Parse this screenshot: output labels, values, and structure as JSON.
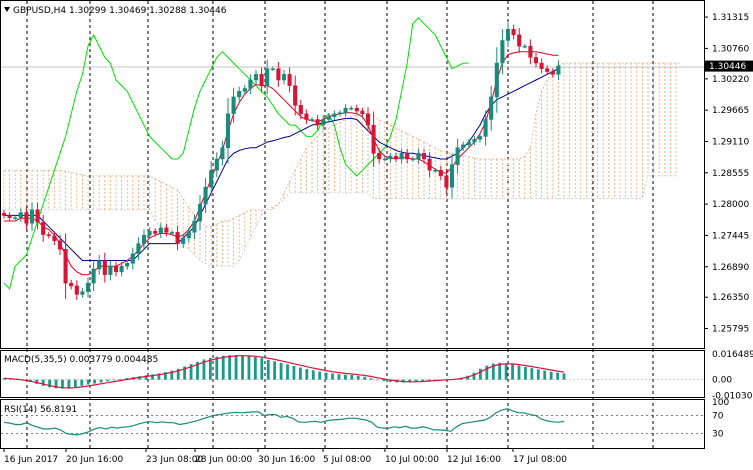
{
  "chart_data": {
    "type": "candlestick",
    "main": {
      "header": "GBPUSD,H4  1.30299 1.30469 1.30288 1.30446",
      "current_price": "1.30446",
      "ylim": [
        1.2545,
        1.316
      ],
      "y_ticks": [
        "1.31315",
        "1.30760",
        "1.30220",
        "1.29665",
        "1.29110",
        "1.28555",
        "1.28000",
        "1.27445",
        "1.26890",
        "1.26350",
        "1.25795"
      ],
      "close": [
        1.278,
        1.2776,
        1.2776,
        1.2785,
        1.2766,
        1.279,
        1.2768,
        1.2746,
        1.2744,
        1.2735,
        1.272,
        1.266,
        1.2655,
        1.264,
        1.2645,
        1.266,
        1.2685,
        1.27,
        1.2675,
        1.269,
        1.268,
        1.269,
        1.2695,
        1.2712,
        1.273,
        1.2745,
        1.2752,
        1.2748,
        1.2758,
        1.275,
        1.275,
        1.273,
        1.274,
        1.275,
        1.277,
        1.28,
        1.283,
        1.286,
        1.288,
        1.29,
        1.296,
        1.299,
        1.3,
        1.3005,
        1.302,
        1.303,
        1.301,
        1.304,
        1.304,
        1.302,
        1.303,
        1.301,
        1.2975,
        1.296,
        1.295,
        1.295,
        1.294,
        1.295,
        1.2955,
        1.296,
        1.2962,
        1.297,
        1.297,
        1.2965,
        1.296,
        1.294,
        1.289,
        1.288,
        1.288,
        1.2885,
        1.288,
        1.289,
        1.288,
        1.288,
        1.289,
        1.288,
        1.286,
        1.286,
        1.285,
        1.283,
        1.287,
        1.29,
        1.2905,
        1.291,
        1.2915,
        1.292,
        1.295,
        1.299,
        1.305,
        1.309,
        1.311,
        1.31,
        1.308,
        1.308,
        1.306,
        1.305,
        1.304,
        1.3035,
        1.303,
        1.3045
      ],
      "series": [
        {
          "name": "tenkan",
          "values": [
            1.277,
            1.277,
            1.277,
            1.2775,
            1.2775,
            1.2775,
            1.277,
            1.276,
            1.2755,
            1.2745,
            1.273,
            1.271,
            1.269,
            1.268,
            1.2675,
            1.2675,
            1.268,
            1.269,
            1.269,
            1.269,
            1.269,
            1.2695,
            1.27,
            1.2708,
            1.2718,
            1.273,
            1.274,
            1.2745,
            1.2748,
            1.2748,
            1.2746,
            1.2742,
            1.2745,
            1.2755,
            1.277,
            1.2795,
            1.282,
            1.2845,
            1.287,
            1.2895,
            1.293,
            1.296,
            1.298,
            1.2995,
            1.3005,
            1.3012,
            1.301,
            1.301,
            1.3005,
            1.2995,
            1.2985,
            1.2975,
            1.2965,
            1.2955,
            1.295,
            1.2948,
            1.2946,
            1.295,
            1.2955,
            1.2958,
            1.296,
            1.2962,
            1.2962,
            1.296,
            1.2955,
            1.294,
            1.2915,
            1.2895,
            1.2885,
            1.2882,
            1.288,
            1.2883,
            1.2882,
            1.288,
            1.288,
            1.2875,
            1.2868,
            1.2862,
            1.2856,
            1.2855,
            1.2865,
            1.288,
            1.289,
            1.29,
            1.291,
            1.2925,
            1.2945,
            1.298,
            1.302,
            1.305,
            1.3065,
            1.3068,
            1.307,
            1.307,
            1.307,
            1.307,
            1.3068,
            1.3066,
            1.3064,
            1.3064
          ]
        },
        {
          "name": "kijun",
          "values": [
            1.278,
            1.278,
            1.278,
            1.278,
            1.278,
            1.278,
            1.278,
            1.277,
            1.276,
            1.275,
            1.274,
            1.273,
            1.272,
            1.271,
            1.27,
            1.27,
            1.27,
            1.27,
            1.27,
            1.27,
            1.27,
            1.27,
            1.27,
            1.27,
            1.271,
            1.272,
            1.273,
            1.273,
            1.273,
            1.273,
            1.273,
            1.273,
            1.274,
            1.275,
            1.276,
            1.278,
            1.28,
            1.282,
            1.284,
            1.286,
            1.288,
            1.289,
            1.2895,
            1.2898,
            1.29,
            1.29,
            1.2905,
            1.291,
            1.2912,
            1.2915,
            1.2918,
            1.292,
            1.2925,
            1.293,
            1.2935,
            1.294,
            1.2942,
            1.2944,
            1.2946,
            1.2948,
            1.295,
            1.2952,
            1.2952,
            1.295,
            1.294,
            1.293,
            1.292,
            1.291,
            1.2905,
            1.29,
            1.2895,
            1.2892,
            1.289,
            1.289,
            1.2888,
            1.2886,
            1.2884,
            1.2882,
            1.288,
            1.288,
            1.2885,
            1.289,
            1.29,
            1.291,
            1.2925,
            1.294,
            1.296,
            1.2975,
            1.2985,
            1.299,
            1.2995,
            1.3,
            1.3005,
            1.301,
            1.3015,
            1.302,
            1.3025,
            1.303,
            1.3035,
            1.304
          ]
        },
        {
          "name": "chikou",
          "values": [
            1.266,
            1.265,
            1.269,
            1.27,
            1.271,
            1.274,
            1.277,
            1.28,
            1.283,
            1.286,
            1.289,
            1.292,
            1.296,
            1.3,
            1.303,
            1.308,
            1.31,
            1.308,
            1.306,
            1.305,
            1.302,
            1.301,
            1.3,
            1.298,
            1.296,
            1.294,
            1.292,
            1.291,
            1.29,
            1.289,
            1.288,
            1.288,
            1.289,
            1.293,
            1.297,
            1.3,
            1.302,
            1.304,
            1.306,
            1.307,
            1.306,
            1.305,
            1.304,
            1.303,
            1.302,
            1.301,
            1.3,
            1.299,
            1.2975,
            1.296,
            1.295,
            1.294,
            1.294,
            1.293,
            1.292,
            1.292,
            1.293,
            1.295,
            1.296,
            1.294,
            1.29,
            1.287,
            1.286,
            1.285,
            1.286,
            1.287,
            1.288,
            1.289,
            1.29,
            1.292,
            1.295,
            1.3,
            1.305,
            1.312,
            1.313,
            1.312,
            1.311,
            1.31,
            1.308,
            1.306,
            1.304,
            1.3045,
            1.305,
            1.305
          ]
        },
        {
          "name": "span_a",
          "values": [
            1.286,
            1.286,
            1.286,
            1.286,
            1.286,
            1.286,
            1.286,
            1.286,
            1.286,
            1.286,
            1.286,
            1.2858,
            1.2856,
            1.2854,
            1.2852,
            1.285,
            1.285,
            1.285,
            1.285,
            1.285,
            1.285,
            1.285,
            1.285,
            1.285,
            1.285,
            1.285,
            1.285,
            1.2845,
            1.284,
            1.2835,
            1.283,
            1.2825,
            1.281,
            1.2795,
            1.278,
            1.277,
            1.276,
            1.276,
            1.2765,
            1.277,
            1.277,
            1.2775,
            1.278,
            1.2785,
            1.279,
            1.279,
            1.279,
            1.279,
            1.279,
            1.28,
            1.282,
            1.284,
            1.286,
            1.288,
            1.29,
            1.291,
            1.292,
            1.293,
            1.2935,
            1.294,
            1.2945,
            1.295,
            1.2955,
            1.2958,
            1.296,
            1.296,
            1.2955,
            1.295,
            1.2945,
            1.294,
            1.2935,
            1.293,
            1.2925,
            1.292,
            1.2915,
            1.291,
            1.2905,
            1.29,
            1.2895,
            1.2892,
            1.289,
            1.2888,
            1.2886,
            1.2884,
            1.2882,
            1.288,
            1.288,
            1.288,
            1.288,
            1.288,
            1.288,
            1.288,
            1.288,
            1.2885,
            1.29,
            1.296,
            1.3,
            1.302,
            1.3035,
            1.3045,
            1.305,
            1.305,
            1.305,
            1.305,
            1.305,
            1.305,
            1.305,
            1.305,
            1.305,
            1.305,
            1.305,
            1.305,
            1.305,
            1.305,
            1.305,
            1.305,
            1.305,
            1.305,
            1.305,
            1.305,
            1.305,
            1.305
          ]
        },
        {
          "name": "span_b",
          "values": [
            1.279,
            1.279,
            1.279,
            1.279,
            1.279,
            1.279,
            1.279,
            1.279,
            1.279,
            1.279,
            1.279,
            1.279,
            1.279,
            1.279,
            1.279,
            1.279,
            1.279,
            1.279,
            1.279,
            1.279,
            1.279,
            1.279,
            1.279,
            1.279,
            1.279,
            1.279,
            1.279,
            1.277,
            1.276,
            1.275,
            1.2745,
            1.274,
            1.273,
            1.272,
            1.271,
            1.27,
            1.2695,
            1.269,
            1.269,
            1.269,
            1.269,
            1.269,
            1.27,
            1.272,
            1.274,
            1.276,
            1.278,
            1.279,
            1.2795,
            1.28,
            1.281,
            1.282,
            1.282,
            1.282,
            1.282,
            1.282,
            1.282,
            1.282,
            1.282,
            1.282,
            1.282,
            1.282,
            1.282,
            1.282,
            1.282,
            1.282,
            1.281,
            1.281,
            1.281,
            1.281,
            1.281,
            1.281,
            1.281,
            1.281,
            1.281,
            1.281,
            1.281,
            1.281,
            1.281,
            1.281,
            1.281,
            1.281,
            1.281,
            1.281,
            1.281,
            1.281,
            1.281,
            1.281,
            1.281,
            1.281,
            1.281,
            1.281,
            1.281,
            1.281,
            1.281,
            1.281,
            1.281,
            1.281,
            1.281,
            1.281,
            1.281,
            1.281,
            1.281,
            1.281,
            1.281,
            1.281,
            1.281,
            1.281,
            1.281,
            1.281,
            1.281,
            1.281,
            1.281,
            1.281,
            1.281,
            1.285,
            1.285,
            1.285,
            1.285,
            1.285,
            1.285
          ]
        }
      ]
    },
    "macd": {
      "label": "MACD(5,35,5) 0.003779 0.004485",
      "ylim": [
        -0.0112,
        0.0178
      ],
      "y_ticks": [
        "0.016489",
        "0.00",
        "-0.010308"
      ],
      "histogram": [
        0.0012,
        0.0008,
        0.0002,
        -0.0006,
        -0.0016,
        -0.0028,
        -0.004,
        -0.005,
        -0.0056,
        -0.0058,
        -0.0055,
        -0.0048,
        -0.004,
        -0.0032,
        -0.0025,
        -0.0018,
        -0.001,
        -0.0003,
        0.0004,
        0.001,
        0.0016,
        0.0022,
        0.0028,
        0.0034,
        0.004,
        0.0048,
        0.0058,
        0.007,
        0.0085,
        0.01,
        0.0115,
        0.013,
        0.014,
        0.0148,
        0.0154,
        0.0157,
        0.0158,
        0.0156,
        0.0152,
        0.0146,
        0.0138,
        0.0128,
        0.0118,
        0.0108,
        0.0098,
        0.0088,
        0.0078,
        0.0068,
        0.006,
        0.0052,
        0.0045,
        0.004,
        0.0035,
        0.0032,
        0.003,
        0.0025,
        0.0018,
        0.0008,
        -0.0002,
        -0.001,
        -0.0015,
        -0.0018,
        -0.0019,
        -0.0018,
        -0.0015,
        -0.001,
        -0.0006,
        -0.0002,
        0.0,
        0.0002,
        0.0005,
        0.0012,
        0.0025,
        0.0045,
        0.007,
        0.009,
        0.0104,
        0.0108,
        0.0104,
        0.0098,
        0.009,
        0.0082,
        0.0074,
        0.0066,
        0.0058,
        0.005,
        0.0045,
        0.004
      ],
      "signal": [
        0.0008,
        0.0006,
        0.0002,
        -0.0003,
        -0.001,
        -0.0019,
        -0.0029,
        -0.0039,
        -0.0047,
        -0.0052,
        -0.0054,
        -0.0052,
        -0.0047,
        -0.0041,
        -0.0034,
        -0.0027,
        -0.002,
        -0.0013,
        -0.0006,
        0.0001,
        0.0008,
        0.0014,
        0.002,
        0.0026,
        0.0032,
        0.0039,
        0.0047,
        0.0057,
        0.0069,
        0.0083,
        0.0097,
        0.0112,
        0.0125,
        0.0135,
        0.0143,
        0.0149,
        0.0153,
        0.0154,
        0.0153,
        0.015,
        0.0145,
        0.0138,
        0.013,
        0.0121,
        0.0112,
        0.0102,
        0.0093,
        0.0083,
        0.0074,
        0.0066,
        0.0058,
        0.0051,
        0.0045,
        0.004,
        0.0036,
        0.0032,
        0.0027,
        0.002,
        0.0012,
        0.0004,
        -0.0003,
        -0.0008,
        -0.0012,
        -0.0014,
        -0.0014,
        -0.0012,
        -0.0009,
        -0.0006,
        -0.0003,
        -0.0001,
        0.0002,
        0.0007,
        0.0016,
        0.003,
        0.005,
        0.007,
        0.0088,
        0.0098,
        0.0102,
        0.0101,
        0.0097,
        0.0091,
        0.0084,
        0.0077,
        0.0069,
        0.0062,
        0.0055,
        0.0048
      ]
    },
    "rsi": {
      "label": "RSI(14) 56.8191",
      "ylim": [
        0,
        100
      ],
      "y_ticks": [
        "100",
        "70",
        "30",
        "0"
      ],
      "levels": [
        70,
        30
      ],
      "values": [
        55,
        53,
        50,
        50,
        54,
        48,
        44,
        40,
        40,
        42,
        38,
        30,
        28,
        27,
        30,
        34,
        40,
        43,
        40,
        44,
        42,
        44,
        45,
        48,
        52,
        55,
        56,
        54,
        56,
        54,
        54,
        50,
        52,
        55,
        58,
        62,
        66,
        70,
        72,
        74,
        76,
        77,
        76,
        77,
        78,
        78,
        70,
        72,
        72,
        66,
        68,
        64,
        56,
        55,
        56,
        57,
        55,
        58,
        60,
        61,
        62,
        64,
        64,
        62,
        60,
        55,
        44,
        42,
        42,
        45,
        43,
        46,
        42,
        42,
        45,
        42,
        38,
        38,
        37,
        35,
        45,
        52,
        54,
        56,
        58,
        60,
        66,
        76,
        82,
        85,
        80,
        76,
        76,
        72,
        70,
        62,
        58,
        56,
        55,
        57
      ]
    },
    "x_ticks": [
      "16 Jun 2017",
      "20 Jun 16:00",
      "23 Jun 08:00",
      "28 Jun 00:00",
      "30 Jun 16:00",
      "5 Jul 08:00",
      "10 Jul 00:00",
      "12 Jul 16:00",
      "17 Jul 08:00"
    ],
    "colors": {
      "up": "#1a8a7a",
      "down": "#d81436",
      "tenkan": "#e0001f",
      "kijun": "#00008b",
      "chikou": "#00e000",
      "cloud_bull": "#f0a070",
      "cloud_bear": "#c8b8b8",
      "macd_hist": "#1a9a8a",
      "macd_signal": "#d81436",
      "rsi": "#1a8a7a"
    }
  }
}
